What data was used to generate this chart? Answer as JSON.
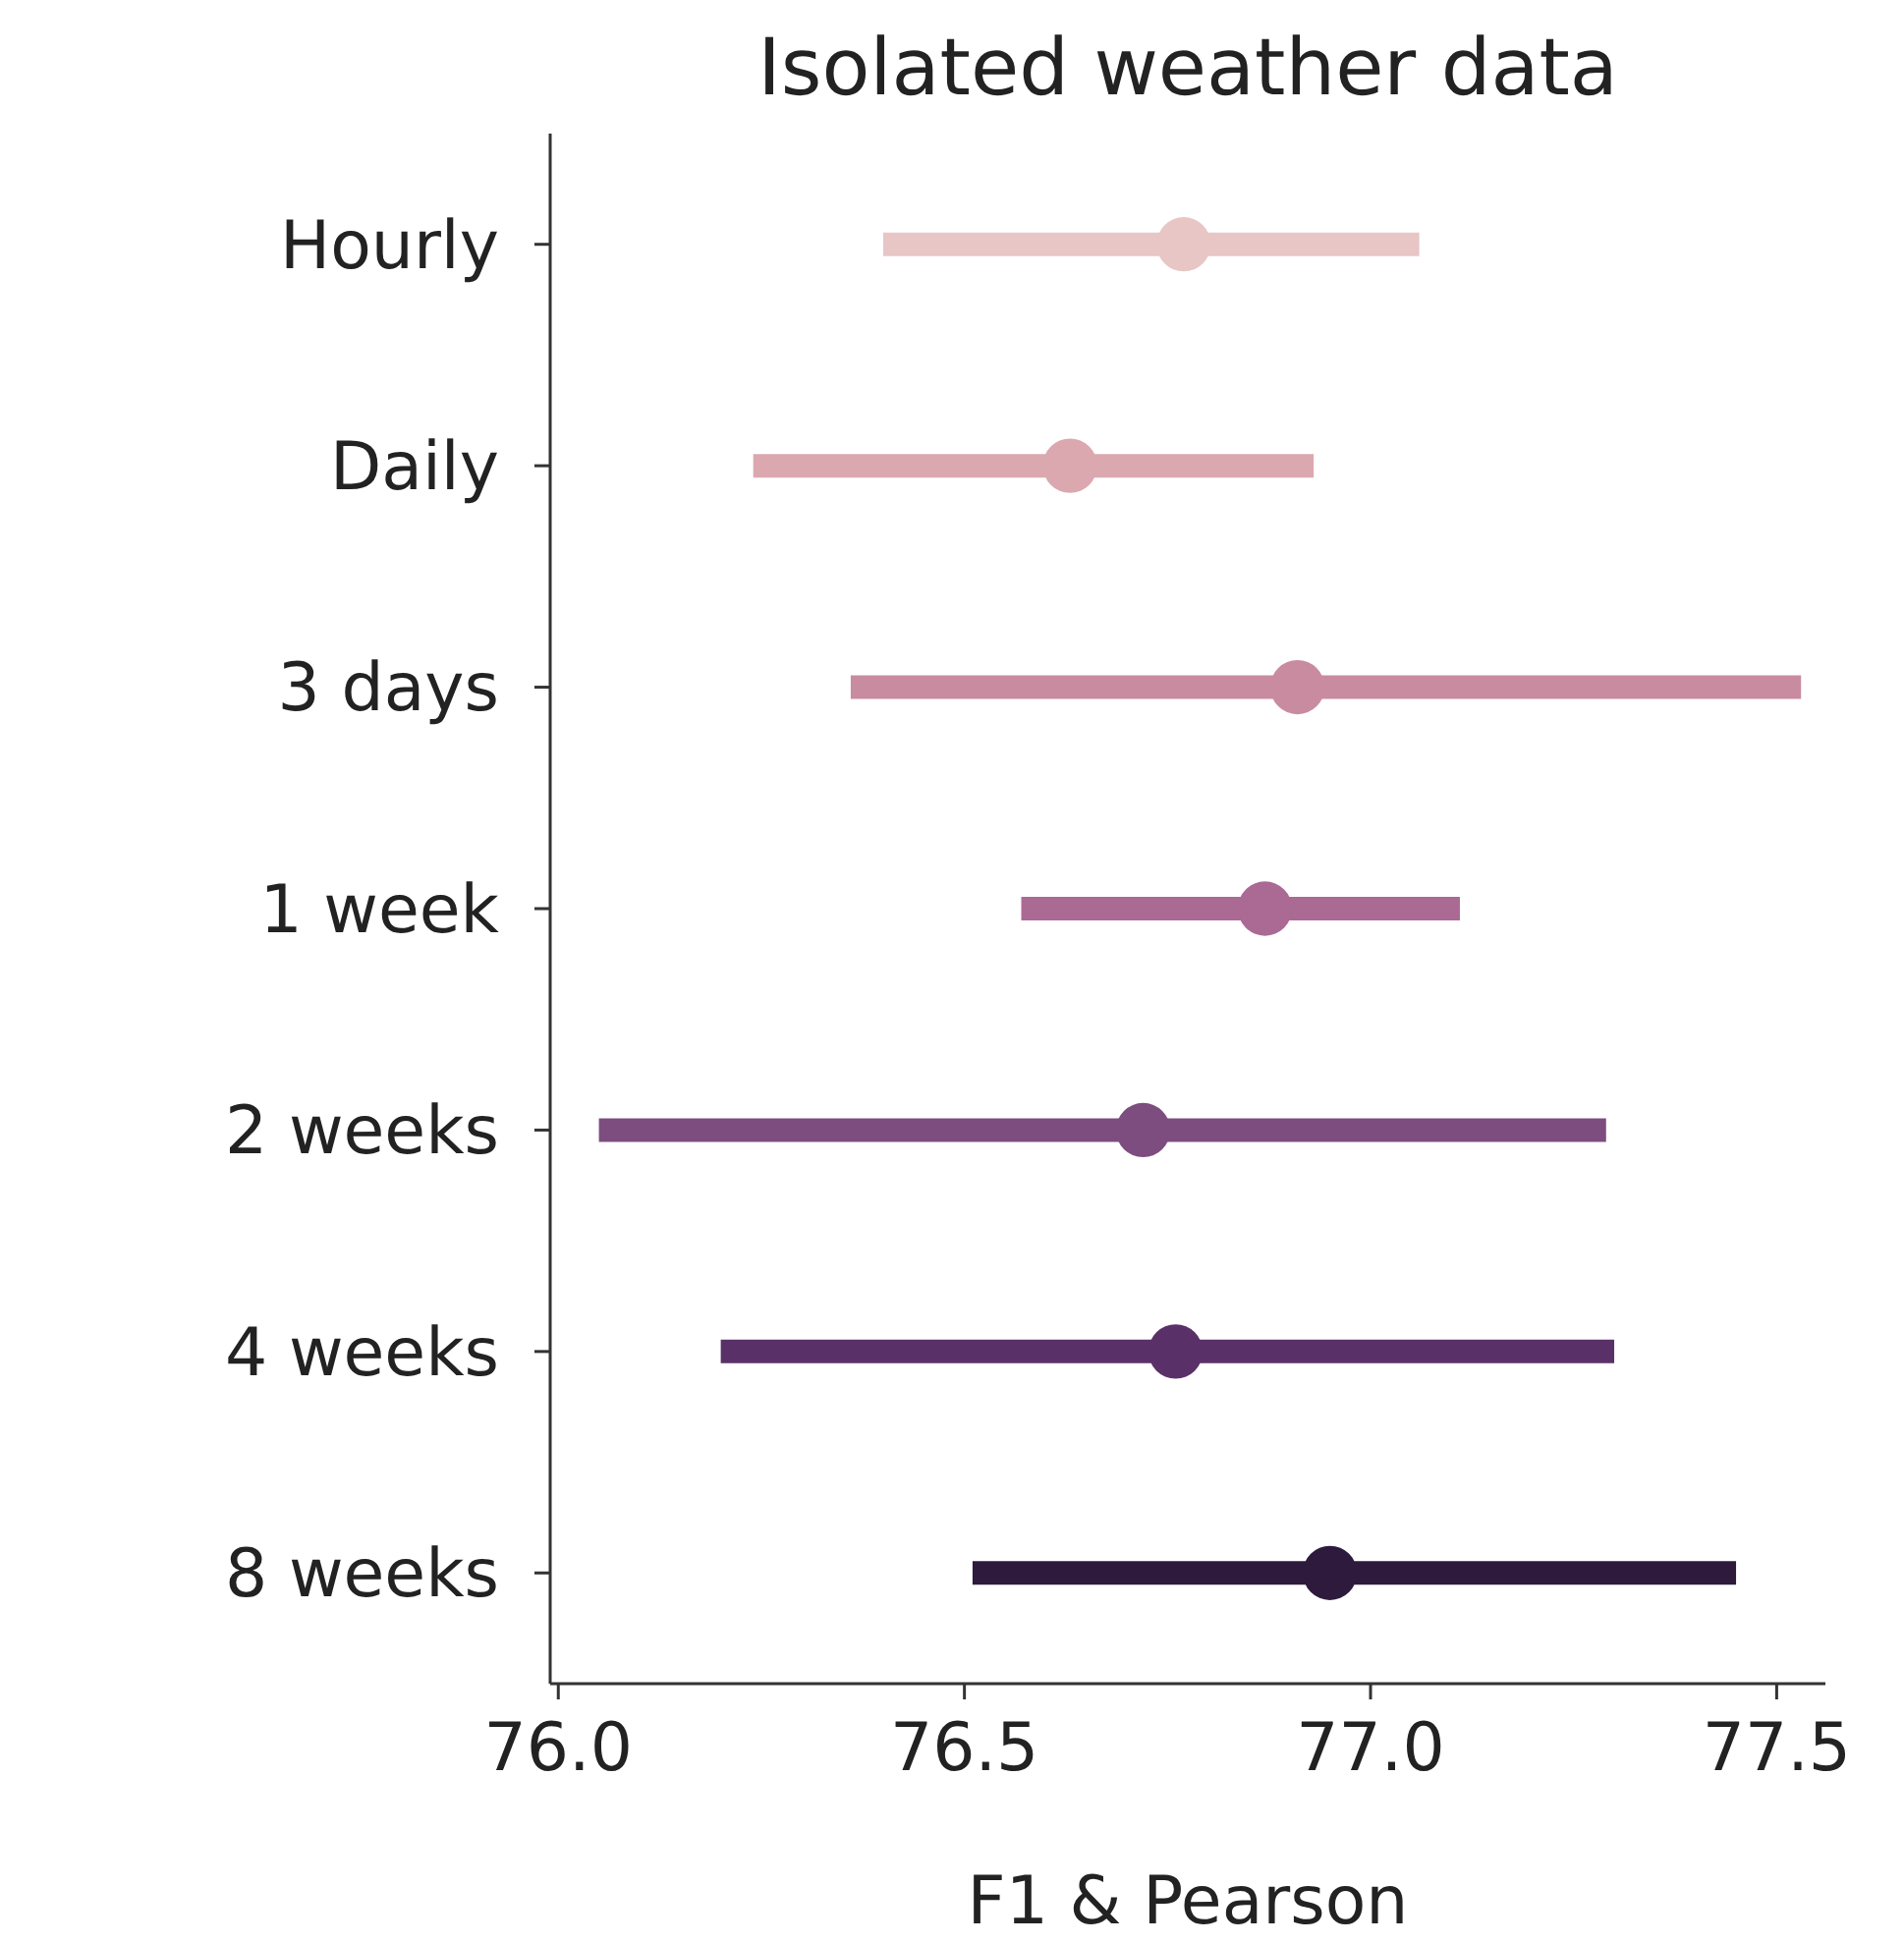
{
  "chart_data": {
    "type": "scatter",
    "title": "Isolated weather data",
    "xlabel": "F1 & Pearson",
    "orientation": "horizontal",
    "marker": "circle",
    "categories": [
      "Hourly",
      "Daily",
      "3 days",
      "1 week",
      "2 weeks",
      "4 weeks",
      "8 weeks"
    ],
    "values": [
      76.77,
      76.63,
      76.91,
      76.87,
      76.72,
      76.76,
      76.95
    ],
    "errors": [
      [
        76.4,
        77.06
      ],
      [
        76.24,
        76.93
      ],
      [
        76.36,
        77.53
      ],
      [
        76.57,
        77.11
      ],
      [
        76.05,
        77.29
      ],
      [
        76.2,
        77.3
      ],
      [
        76.51,
        77.45
      ]
    ],
    "colors": [
      "#e8c6c6",
      "#dba8b0",
      "#c98ba0",
      "#aa6a94",
      "#7d4d7f",
      "#5a3068",
      "#2d1a3d"
    ],
    "xlim": [
      75.99,
      77.56
    ],
    "xticks": [
      {
        "value": 76,
        "label": "76.0"
      },
      {
        "value": 76.5,
        "label": "76.5"
      },
      {
        "value": 77,
        "label": "77.0"
      },
      {
        "value": 77.5,
        "label": "77.5"
      }
    ]
  }
}
